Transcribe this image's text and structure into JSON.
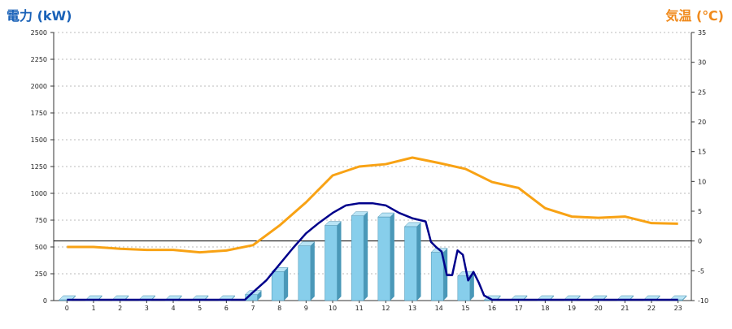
{
  "chart_data": {
    "type": "bar",
    "left_axis_title": "電力 (kW)",
    "right_axis_title": "気温 (℃)",
    "categories": [
      "0",
      "1",
      "2",
      "3",
      "4",
      "5",
      "6",
      "7",
      "8",
      "9",
      "10",
      "11",
      "12",
      "13",
      "14",
      "15",
      "16",
      "17",
      "18",
      "19",
      "20",
      "21",
      "22",
      "23"
    ],
    "y_left": {
      "min": 0,
      "max": 2500,
      "ticks": [
        0,
        250,
        500,
        750,
        1000,
        1250,
        1500,
        1750,
        2000,
        2250,
        2500
      ]
    },
    "y_right": {
      "min": -10,
      "max": 35,
      "ticks": [
        -10,
        -5,
        0,
        5,
        10,
        15,
        20,
        25,
        30,
        35
      ]
    },
    "bars": {
      "color": "#87ceeb",
      "values": [
        0,
        0,
        0,
        0,
        0,
        0,
        0,
        55,
        270,
        510,
        700,
        790,
        780,
        690,
        450,
        230,
        0,
        0,
        0,
        0,
        0,
        0,
        0,
        0
      ]
    },
    "power_line": {
      "color": "#00008b",
      "x": [
        0,
        1,
        2,
        3,
        4,
        5,
        6,
        6.7,
        7,
        7.5,
        8,
        8.5,
        9,
        9.5,
        10,
        10.5,
        11,
        11.5,
        12,
        12.5,
        13,
        13.5,
        13.7,
        13.9,
        14.1,
        14.3,
        14.5,
        14.7,
        14.9,
        15.1,
        15.3,
        15.5,
        15.7,
        16,
        17,
        18,
        19,
        20,
        21,
        22,
        23
      ],
      "values": [
        0,
        0,
        0,
        0,
        0,
        0,
        0,
        0,
        70,
        180,
        330,
        480,
        620,
        720,
        810,
        880,
        900,
        900,
        880,
        810,
        760,
        730,
        540,
        490,
        450,
        230,
        230,
        460,
        420,
        180,
        260,
        160,
        40,
        0,
        0,
        0,
        0,
        0,
        0,
        0,
        0
      ]
    },
    "temperature_line": {
      "color": "#f8a214",
      "values": [
        -1.0,
        -1.0,
        -1.3,
        -1.5,
        -1.5,
        -1.9,
        -1.6,
        -0.7,
        2.6,
        6.5,
        11.0,
        12.5,
        12.9,
        14.0,
        13.1,
        12.1,
        9.9,
        8.9,
        5.5,
        4.1,
        3.9,
        4.1,
        3.0,
        2.9
      ]
    },
    "grid": true
  }
}
